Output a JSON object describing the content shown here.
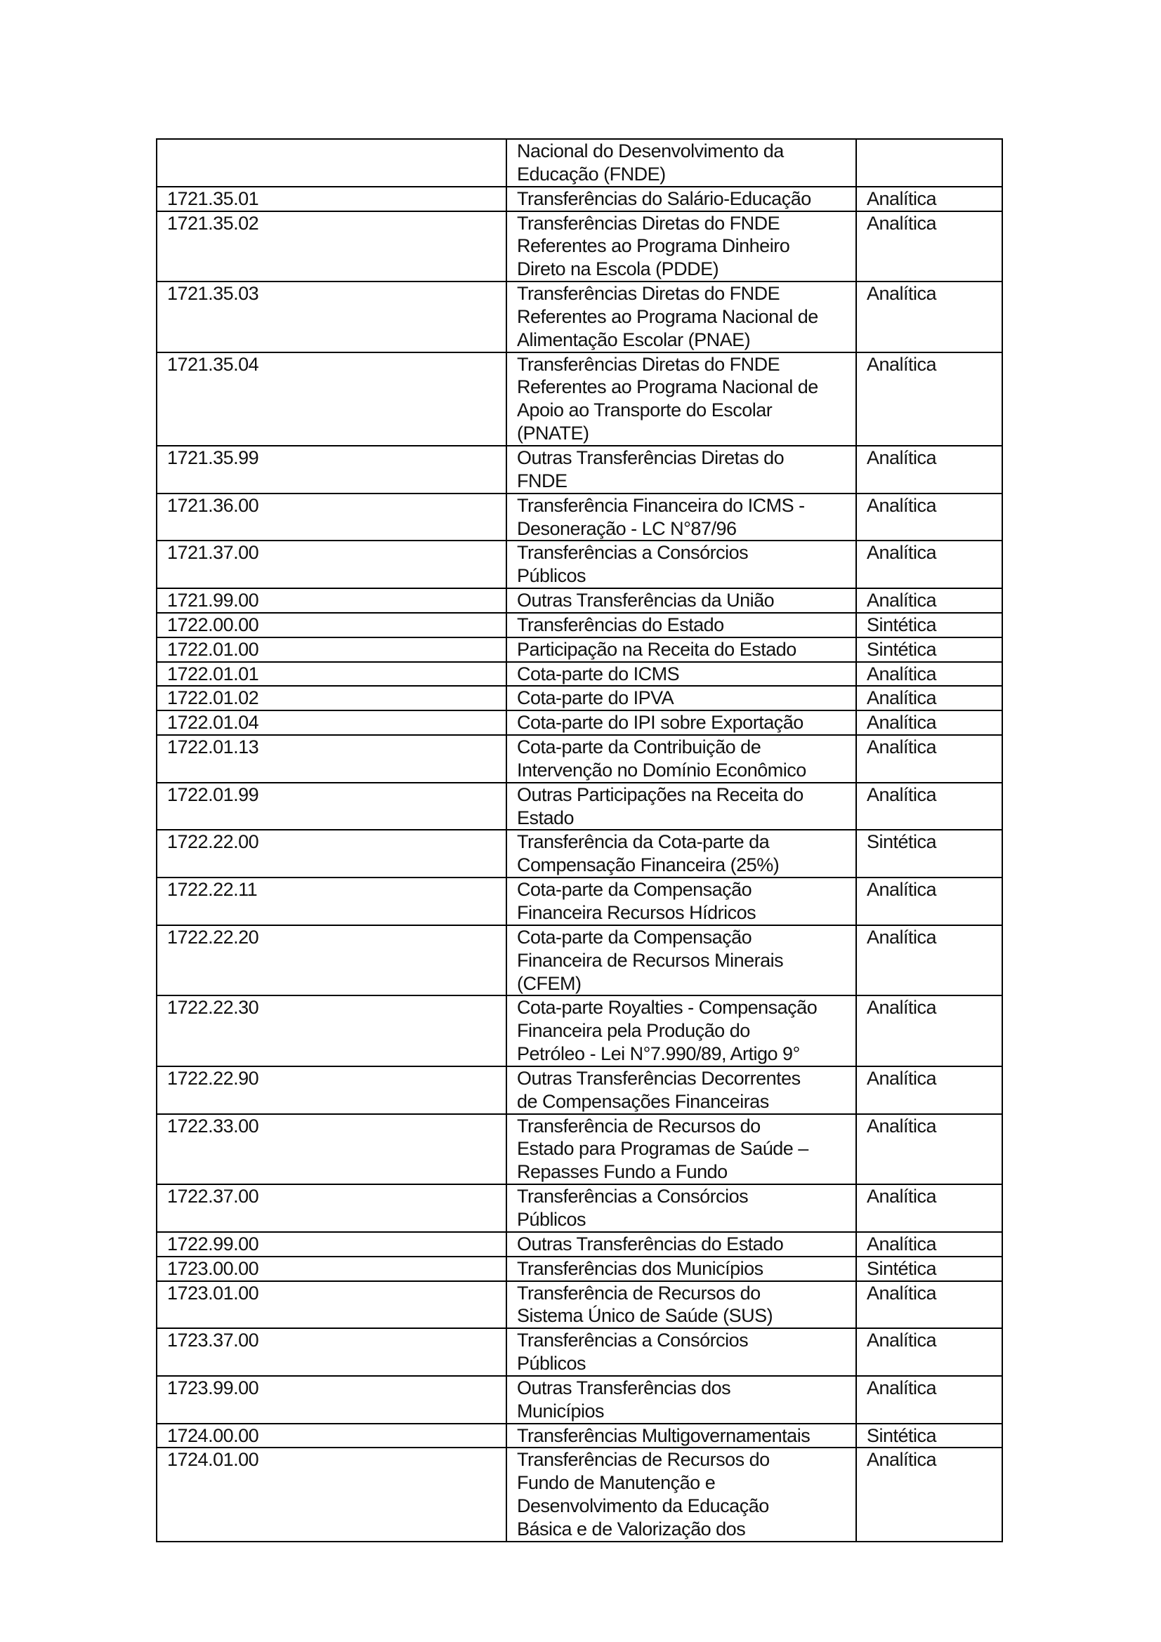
{
  "rows": [
    {
      "code": "",
      "desc": [
        "Nacional do Desenvolvimento da",
        "Educação (FNDE)"
      ],
      "type": ""
    },
    {
      "code": "1721.35.01",
      "desc": [
        "Transferências do Salário-Educação"
      ],
      "type": "Analítica"
    },
    {
      "code": "1721.35.02",
      "desc": [
        "Transferências Diretas do FNDE",
        "Referentes ao Programa Dinheiro",
        "Direto na Escola (PDDE)"
      ],
      "type": "Analítica"
    },
    {
      "code": "1721.35.03",
      "desc": [
        "Transferências Diretas do FNDE",
        "Referentes ao Programa Nacional de",
        "Alimentação Escolar (PNAE)"
      ],
      "type": "Analítica"
    },
    {
      "code": "1721.35.04",
      "desc": [
        "Transferências Diretas do FNDE",
        "Referentes ao Programa Nacional de",
        "Apoio ao Transporte do Escolar",
        "(PNATE)"
      ],
      "type": "Analítica"
    },
    {
      "code": "1721.35.99",
      "desc": [
        "Outras Transferências Diretas do",
        "FNDE"
      ],
      "type": "Analítica"
    },
    {
      "code": "1721.36.00",
      "desc": [
        "Transferência Financeira do ICMS -",
        "Desoneração - LC N°87/96"
      ],
      "type": "Analítica"
    },
    {
      "code": "1721.37.00",
      "desc": [
        "Transferências a Consórcios",
        "Públicos"
      ],
      "type": "Analítica"
    },
    {
      "code": "1721.99.00",
      "desc": [
        "Outras Transferências da União"
      ],
      "type": "Analítica"
    },
    {
      "code": "1722.00.00",
      "desc": [
        "Transferências do Estado"
      ],
      "type": "Sintética"
    },
    {
      "code": "1722.01.00",
      "desc": [
        "Participação na Receita do Estado"
      ],
      "type": "Sintética"
    },
    {
      "code": "1722.01.01",
      "desc": [
        "Cota-parte do ICMS"
      ],
      "type": "Analítica"
    },
    {
      "code": "1722.01.02",
      "desc": [
        "Cota-parte do IPVA"
      ],
      "type": "Analítica"
    },
    {
      "code": "1722.01.04",
      "desc": [
        "Cota-parte do IPI sobre Exportação"
      ],
      "type": "Analítica"
    },
    {
      "code": "1722.01.13",
      "desc": [
        "Cota-parte da Contribuição de",
        "Intervenção no Domínio Econômico"
      ],
      "type": "Analítica"
    },
    {
      "code": "1722.01.99",
      "desc": [
        "Outras Participações na Receita do",
        "Estado"
      ],
      "type": "Analítica"
    },
    {
      "code": "1722.22.00",
      "desc": [
        "Transferência da Cota-parte da",
        "Compensação Financeira (25%)"
      ],
      "type": "Sintética"
    },
    {
      "code": "1722.22.11",
      "desc": [
        "Cota-parte da Compensação",
        "Financeira Recursos Hídricos"
      ],
      "type": "Analítica"
    },
    {
      "code": "1722.22.20",
      "desc": [
        "Cota-parte da Compensação",
        "Financeira de Recursos Minerais",
        "(CFEM)"
      ],
      "type": "Analítica"
    },
    {
      "code": "1722.22.30",
      "desc": [
        "Cota-parte Royalties - Compensação",
        "Financeira pela Produção do",
        "Petróleo - Lei N°7.990/89, Artigo 9°"
      ],
      "type": "Analítica"
    },
    {
      "code": "1722.22.90",
      "desc": [
        "Outras Transferências Decorrentes",
        "de Compensações Financeiras"
      ],
      "type": "Analítica"
    },
    {
      "code": "1722.33.00",
      "desc": [
        "Transferência de Recursos do",
        "Estado para Programas de Saúde –",
        "Repasses Fundo a Fundo"
      ],
      "type": "Analítica"
    },
    {
      "code": "1722.37.00",
      "desc": [
        "Transferências a Consórcios",
        "Públicos"
      ],
      "type": "Analítica"
    },
    {
      "code": "1722.99.00",
      "desc": [
        "Outras Transferências do Estado"
      ],
      "type": "Analítica"
    },
    {
      "code": "1723.00.00",
      "desc": [
        "Transferências dos Municípios"
      ],
      "type": "Sintética"
    },
    {
      "code": "1723.01.00",
      "desc": [
        "Transferência de Recursos do",
        "Sistema Único de Saúde (SUS)"
      ],
      "type": "Analítica"
    },
    {
      "code": "1723.37.00",
      "desc": [
        "Transferências a Consórcios",
        "Públicos"
      ],
      "type": "Analítica"
    },
    {
      "code": "1723.99.00",
      "desc": [
        "Outras Transferências dos",
        "Municípios"
      ],
      "type": "Analítica"
    },
    {
      "code": "1724.00.00",
      "desc": [
        "Transferências Multigovernamentais"
      ],
      "type": "Sintética"
    },
    {
      "code": "1724.01.00",
      "desc": [
        "Transferências de Recursos do",
        "Fundo de Manutenção e",
        "Desenvolvimento da Educação",
        "Básica e de Valorização dos"
      ],
      "type": "Analítica"
    }
  ]
}
